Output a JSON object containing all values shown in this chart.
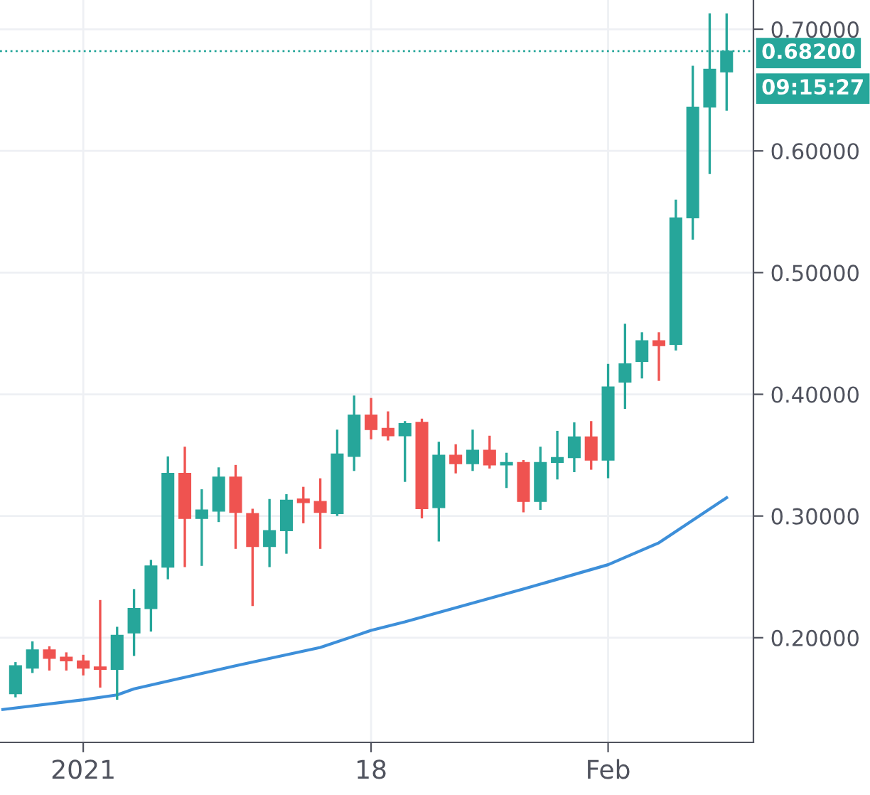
{
  "chart_data": {
    "type": "candlestick",
    "x": [
      "2020-12-28",
      "2020-12-29",
      "2020-12-30",
      "2020-12-31",
      "2021-01-01",
      "2021-01-02",
      "2021-01-03",
      "2021-01-04",
      "2021-01-05",
      "2021-01-06",
      "2021-01-07",
      "2021-01-08",
      "2021-01-09",
      "2021-01-10",
      "2021-01-11",
      "2021-01-12",
      "2021-01-13",
      "2021-01-14",
      "2021-01-15",
      "2021-01-16",
      "2021-01-17",
      "2021-01-18",
      "2021-01-19",
      "2021-01-20",
      "2021-01-21",
      "2021-01-22",
      "2021-01-23",
      "2021-01-24",
      "2021-01-25",
      "2021-01-26",
      "2021-01-27",
      "2021-01-28",
      "2021-01-29",
      "2021-01-30",
      "2021-01-31",
      "2021-02-01",
      "2021-02-02",
      "2021-02-03",
      "2021-02-04",
      "2021-02-05",
      "2021-02-06",
      "2021-02-07",
      "2021-02-08"
    ],
    "ohlc": [
      [
        0.154,
        0.179,
        0.152,
        0.177
      ],
      [
        0.175,
        0.196,
        0.172,
        0.19
      ],
      [
        0.19,
        0.192,
        0.174,
        0.183
      ],
      [
        0.184,
        0.187,
        0.174,
        0.181
      ],
      [
        0.181,
        0.185,
        0.17,
        0.175
      ],
      [
        0.176,
        0.23,
        0.16,
        0.174
      ],
      [
        0.174,
        0.208,
        0.15,
        0.202
      ],
      [
        0.204,
        0.239,
        0.186,
        0.224
      ],
      [
        0.224,
        0.263,
        0.206,
        0.259
      ],
      [
        0.258,
        0.348,
        0.249,
        0.335
      ],
      [
        0.335,
        0.356,
        0.259,
        0.298
      ],
      [
        0.298,
        0.321,
        0.26,
        0.305
      ],
      [
        0.304,
        0.339,
        0.296,
        0.332
      ],
      [
        0.332,
        0.341,
        0.274,
        0.303
      ],
      [
        0.302,
        0.305,
        0.227,
        0.275
      ],
      [
        0.275,
        0.313,
        0.259,
        0.288
      ],
      [
        0.288,
        0.317,
        0.27,
        0.313
      ],
      [
        0.314,
        0.323,
        0.295,
        0.311
      ],
      [
        0.312,
        0.33,
        0.274,
        0.303
      ],
      [
        0.302,
        0.37,
        0.301,
        0.351
      ],
      [
        0.349,
        0.398,
        0.338,
        0.383
      ],
      [
        0.383,
        0.396,
        0.364,
        0.371
      ],
      [
        0.372,
        0.385,
        0.363,
        0.366
      ],
      [
        0.366,
        0.377,
        0.329,
        0.376
      ],
      [
        0.377,
        0.379,
        0.299,
        0.306
      ],
      [
        0.307,
        0.36,
        0.28,
        0.35
      ],
      [
        0.35,
        0.358,
        0.336,
        0.343
      ],
      [
        0.343,
        0.37,
        0.338,
        0.354
      ],
      [
        0.354,
        0.365,
        0.34,
        0.342
      ],
      [
        0.342,
        0.351,
        0.324,
        0.344
      ],
      [
        0.344,
        0.345,
        0.304,
        0.312
      ],
      [
        0.312,
        0.356,
        0.306,
        0.344
      ],
      [
        0.344,
        0.369,
        0.331,
        0.348
      ],
      [
        0.348,
        0.376,
        0.337,
        0.365
      ],
      [
        0.365,
        0.377,
        0.339,
        0.346
      ],
      [
        0.346,
        0.424,
        0.332,
        0.406
      ],
      [
        0.41,
        0.457,
        0.389,
        0.425
      ],
      [
        0.427,
        0.45,
        0.414,
        0.444
      ],
      [
        0.444,
        0.45,
        0.412,
        0.44
      ],
      [
        0.441,
        0.559,
        0.437,
        0.545
      ],
      [
        0.545,
        0.669,
        0.528,
        0.636
      ],
      [
        0.636,
        0.712,
        0.582,
        0.667
      ],
      [
        0.665,
        0.712,
        0.634,
        0.682
      ]
    ],
    "colors": [
      "#26a69a",
      "#26a69a",
      "#ef5350",
      "#ef5350",
      "#ef5350",
      "#ef5350",
      "#26a69a",
      "#26a69a",
      "#26a69a",
      "#26a69a",
      "#ef5350",
      "#26a69a",
      "#26a69a",
      "#ef5350",
      "#ef5350",
      "#26a69a",
      "#26a69a",
      "#ef5350",
      "#ef5350",
      "#26a69a",
      "#26a69a",
      "#ef5350",
      "#ef5350",
      "#26a69a",
      "#ef5350",
      "#26a69a",
      "#ef5350",
      "#26a69a",
      "#ef5350",
      "#26a69a",
      "#ef5350",
      "#26a69a",
      "#26a69a",
      "#26a69a",
      "#ef5350",
      "#26a69a",
      "#26a69a",
      "#26a69a",
      "#ef5350",
      "#26a69a",
      "#26a69a",
      "#26a69a",
      "#26a69a"
    ],
    "series": [
      {
        "type": "line",
        "color": "#3d8fd9",
        "x": [
          "2020-12-27T06:00",
          "2021-01-01",
          "2021-01-03",
          "2021-01-04",
          "2021-01-10",
          "2021-01-15",
          "2021-01-18",
          "2021-01-20",
          "2021-01-27",
          "2021-02-01",
          "2021-02-04",
          "2021-02-08"
        ],
        "values": [
          0.141,
          0.149,
          0.153,
          0.158,
          0.177,
          0.192,
          0.206,
          0.213,
          0.24,
          0.26,
          0.278,
          0.315
        ]
      }
    ],
    "xlim": [
      "2020-12-27T02:00",
      "2021-02-09T14:00"
    ],
    "xticks": [
      {
        "value": "2021-01-01",
        "label": "2021"
      },
      {
        "value": "2021-01-18",
        "label": "18"
      },
      {
        "value": "2021-02-01",
        "label": "Feb"
      }
    ],
    "ylim": [
      0.114,
      0.724
    ],
    "yticks": [
      {
        "value": 0.2,
        "label": "0.20000"
      },
      {
        "value": 0.3,
        "label": "0.30000"
      },
      {
        "value": 0.4,
        "label": "0.40000"
      },
      {
        "value": 0.5,
        "label": "0.50000"
      },
      {
        "value": 0.6,
        "label": "0.60000"
      },
      {
        "value": 0.7,
        "label": "0.70000"
      }
    ],
    "grid": true,
    "ref_lines": [
      {
        "axis": "y",
        "value": 0.682,
        "label": "0.68200",
        "color": "#26a69a",
        "line_style": "dotted"
      }
    ],
    "annotations": [
      "09:15:27"
    ]
  }
}
